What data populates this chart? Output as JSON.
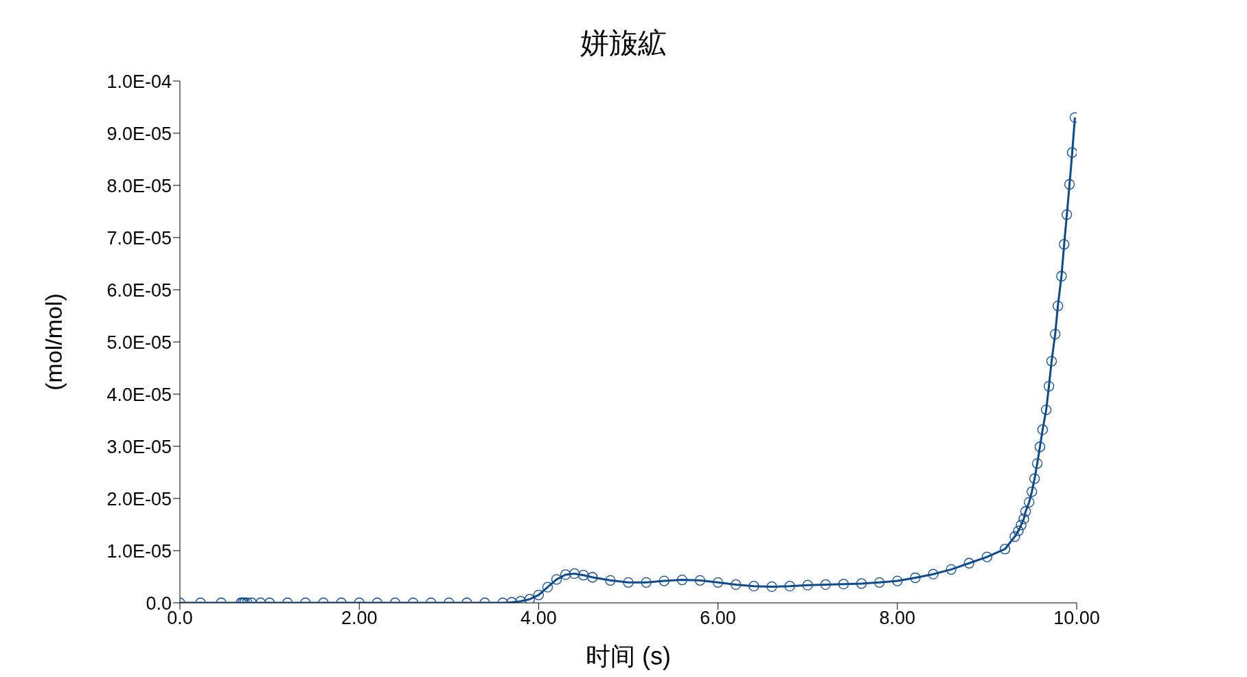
{
  "chart_data": {
    "type": "line",
    "title": "姘旇絋",
    "xlabel": "时间 (s)",
    "ylabel": "(mol/mol)",
    "marker": "circle",
    "line_style": "solid",
    "grid": false,
    "xlim": [
      0,
      10
    ],
    "xticks": [
      {
        "value": 0,
        "label": "0.0"
      },
      {
        "value": 2,
        "label": "2.00"
      },
      {
        "value": 4,
        "label": "4.00"
      },
      {
        "value": 6,
        "label": "6.00"
      },
      {
        "value": 8,
        "label": "8.00"
      },
      {
        "value": 10,
        "label": "10.00"
      }
    ],
    "ylim": [
      0,
      0.0001
    ],
    "yticks": [
      {
        "value": 0,
        "label": "0.0"
      },
      {
        "value": 1e-05,
        "label": "1.0E-05"
      },
      {
        "value": 2e-05,
        "label": "2.0E-05"
      },
      {
        "value": 3e-05,
        "label": "3.0E-05"
      },
      {
        "value": 4e-05,
        "label": "4.0E-05"
      },
      {
        "value": 5e-05,
        "label": "5.0E-05"
      },
      {
        "value": 6e-05,
        "label": "6.0E-05"
      },
      {
        "value": 7e-05,
        "label": "7.0E-05"
      },
      {
        "value": 8e-05,
        "label": "8.0E-05"
      },
      {
        "value": 9e-05,
        "label": "9.0E-05"
      },
      {
        "value": 0.0001,
        "label": "1.0E-04"
      }
    ],
    "x": [
      0,
      0.23,
      0.46,
      0.68,
      0.7,
      0.72,
      0.75,
      0.8,
      0.9,
      1.0,
      1.2,
      1.4,
      1.6,
      1.8,
      2.0,
      2.2,
      2.4,
      2.6,
      2.8,
      3.0,
      3.2,
      3.4,
      3.6,
      3.7,
      3.8,
      3.9,
      4.0,
      4.1,
      4.2,
      4.3,
      4.4,
      4.5,
      4.6,
      4.8,
      5.0,
      5.2,
      5.4,
      5.6,
      5.8,
      6.0,
      6.2,
      6.4,
      6.6,
      6.8,
      7.0,
      7.2,
      7.4,
      7.6,
      7.8,
      8.0,
      8.2,
      8.4,
      8.6,
      8.8,
      9.0,
      9.2,
      9.31,
      9.35,
      9.38,
      9.41,
      9.43,
      9.47,
      9.5,
      9.53,
      9.56,
      9.59,
      9.62,
      9.66,
      9.69,
      9.72,
      9.76,
      9.79,
      9.83,
      9.86,
      9.89,
      9.92,
      9.95,
      9.98
    ],
    "series": [
      {
        "color": "#0d4a8c",
        "values": [
          0,
          0,
          0,
          0,
          0,
          0,
          0,
          0,
          0,
          0,
          0,
          0,
          0,
          0,
          0,
          0,
          0,
          0,
          0,
          0,
          0,
          0,
          0,
          1e-07,
          3e-07,
          7e-07,
          1.5e-06,
          3e-06,
          4.5e-06,
          5.4e-06,
          5.6e-06,
          5.3e-06,
          4.9e-06,
          4.3e-06,
          3.9e-06,
          3.9e-06,
          4.2e-06,
          4.4e-06,
          4.3e-06,
          3.9e-06,
          3.5e-06,
          3.2e-06,
          3.1e-06,
          3.2e-06,
          3.4e-06,
          3.5e-06,
          3.6e-06,
          3.7e-06,
          3.9e-06,
          4.2e-06,
          4.8e-06,
          5.5e-06,
          6.4e-06,
          7.6e-06,
          8.8e-06,
          1.03e-05,
          1.27e-05,
          1.38e-05,
          1.49e-05,
          1.61e-05,
          1.75e-05,
          1.93e-05,
          2.13e-05,
          2.38e-05,
          2.67e-05,
          2.99e-05,
          3.32e-05,
          3.7e-05,
          4.15e-05,
          4.63e-05,
          5.15e-05,
          5.69e-05,
          6.26e-05,
          6.87e-05,
          7.44e-05,
          8.02e-05,
          8.63e-05,
          9.3e-05
        ]
      }
    ]
  }
}
